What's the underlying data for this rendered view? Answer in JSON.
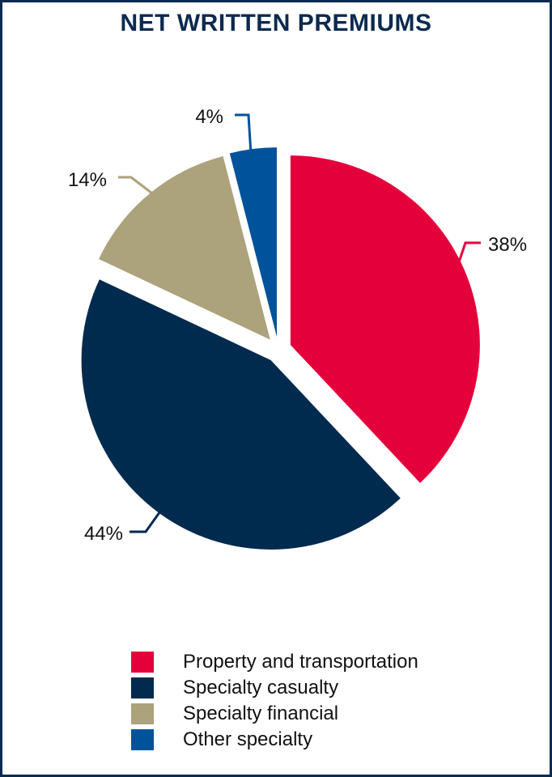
{
  "chart_data": {
    "type": "pie",
    "title": "NET WRITTEN PREMIUMS",
    "slices": [
      {
        "label": "Property and transportation",
        "value": 38,
        "value_label": "38%",
        "color": "#e4003b"
      },
      {
        "label": "Specialty casualty",
        "value": 44,
        "value_label": "44%",
        "color": "#002a4e"
      },
      {
        "label": "Specialty financial",
        "value": 14,
        "value_label": "14%",
        "color": "#aca27b"
      },
      {
        "label": "Other specialty",
        "value": 4,
        "value_label": "4%",
        "color": "#00529b"
      }
    ],
    "legend_position": "bottom"
  }
}
